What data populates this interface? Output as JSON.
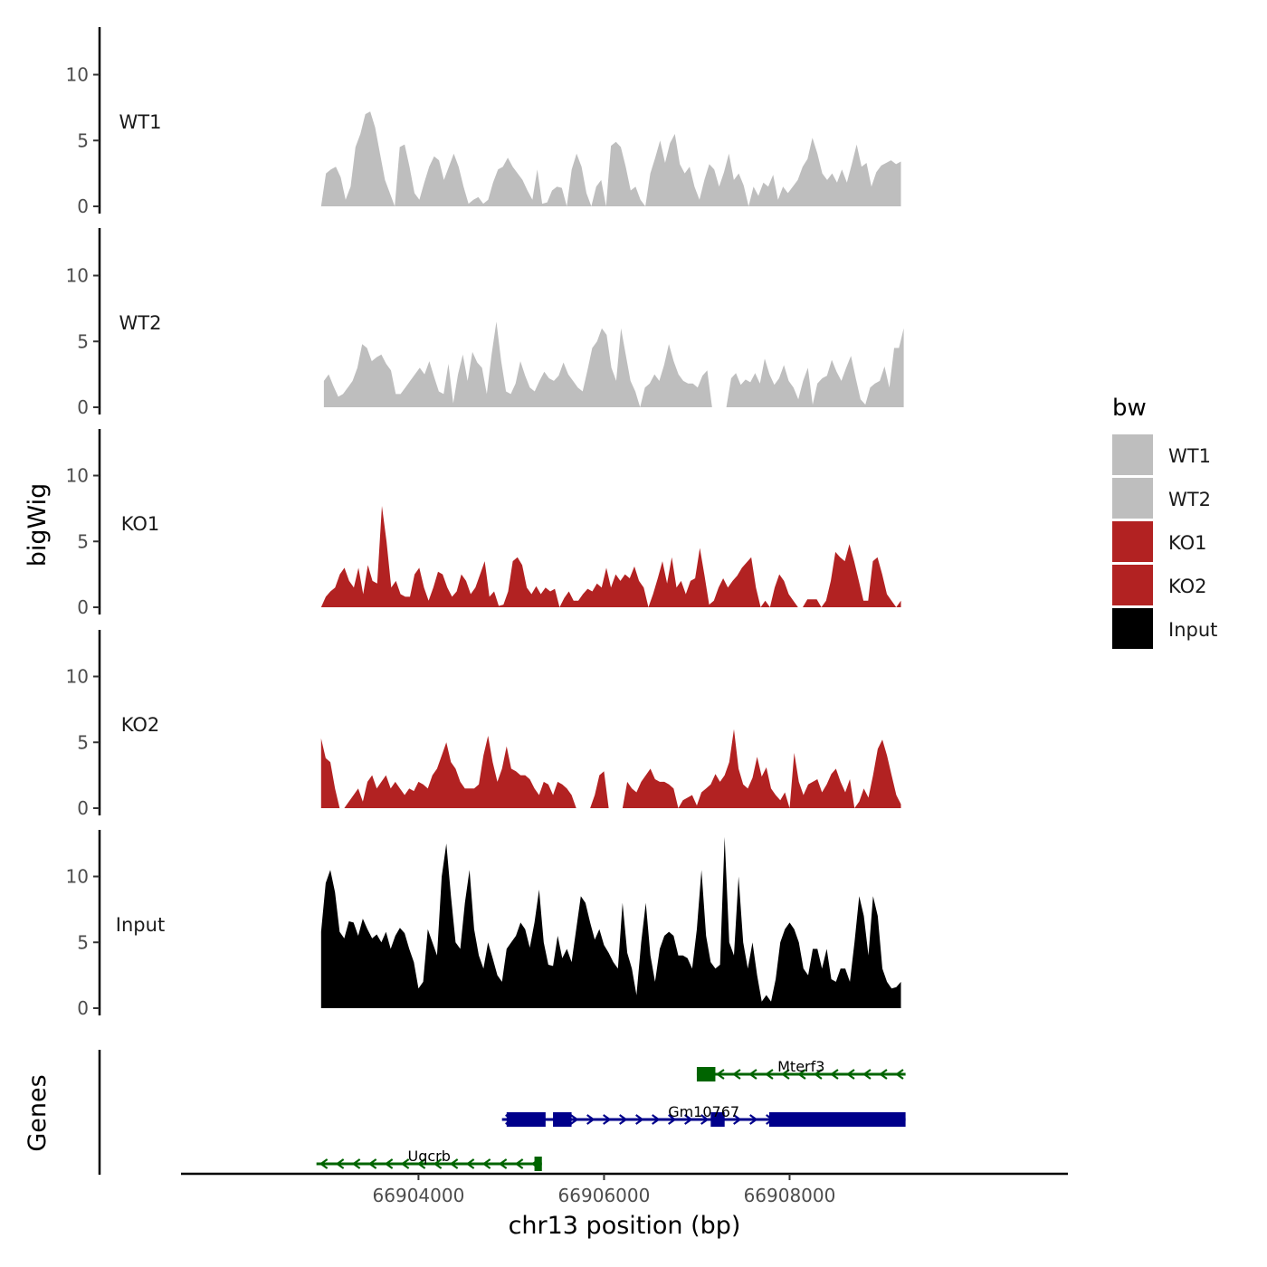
{
  "chart_data": {
    "type": "area",
    "ylabel": "bigWig",
    "xlabel": "chr13 position (bp)",
    "x_range": [
      66902600,
      66909200
    ],
    "x_axis_limits": [
      66901440,
      66911000
    ],
    "x_ticks": [
      66904000,
      66906000,
      66908000
    ],
    "x_tick_labels": [
      "66904000",
      "66906000",
      "66908000"
    ],
    "y_range": [
      0,
      14
    ],
    "y_ticks": [
      0,
      5,
      10
    ],
    "y_tick_labels": [
      "0",
      "5",
      "10"
    ],
    "legend": {
      "title": "bw",
      "entries": [
        {
          "label": "WT1",
          "color": "#bebebe"
        },
        {
          "label": "WT2",
          "color": "#bebebe"
        },
        {
          "label": "KO1",
          "color": "#b22222"
        },
        {
          "label": "KO2",
          "color": "#b22222"
        },
        {
          "label": "Input",
          "color": "#000000"
        }
      ]
    },
    "series": [
      {
        "name": "WT1",
        "color": "#bebebe",
        "start": 66902950,
        "end": 66909200,
        "values": [
          0,
          2.5,
          2.8,
          3.0,
          2.2,
          0.5,
          1.5,
          4.5,
          5.5,
          7.0,
          7.2,
          6.0,
          4.0,
          2.0,
          1.0,
          0,
          4.5,
          4.7,
          3.0,
          1.0,
          0.5,
          1.8,
          3.0,
          3.8,
          3.5,
          2.0,
          3.0,
          4.0,
          3.0,
          1.5,
          0.2,
          0.5,
          0.7,
          0.2,
          0.5,
          1.8,
          2.8,
          3.0,
          3.7,
          3.0,
          2.5,
          2.0,
          1.2,
          0.5,
          2.8,
          0.2,
          0.3,
          1.2,
          1.5,
          1.4,
          0,
          2.8,
          4.0,
          3.0,
          1.0,
          0,
          1.5,
          2.0,
          0,
          4.6,
          4.9,
          4.5,
          3.0,
          1.2,
          1.5,
          0.5,
          0,
          2.5,
          3.7,
          5.0,
          3.3,
          4.8,
          5.5,
          3.2,
          2.5,
          3.0,
          1.5,
          0.5,
          2.0,
          3.2,
          2.8,
          1.5,
          2.6,
          4.0,
          2.0,
          2.5,
          1.6,
          0,
          1.5,
          0.8,
          1.8,
          1.5,
          2.4,
          0.5,
          1.5,
          1.0,
          1.5,
          2.0,
          3.0,
          3.6,
          5.2,
          4.0,
          2.5,
          2.0,
          2.5,
          1.8,
          2.8,
          1.8,
          3.2,
          4.7,
          3.0,
          3.3,
          1.5,
          2.6,
          3.1,
          3.3,
          3.5,
          3.2,
          3.4
        ]
      },
      {
        "name": "WT2",
        "color": "#bebebe",
        "start": 66902980,
        "end": 66909230,
        "values": [
          2.0,
          2.5,
          1.6,
          0.8,
          1.0,
          1.5,
          2.0,
          3.0,
          4.8,
          4.5,
          3.5,
          3.8,
          4.0,
          3.3,
          2.8,
          1.0,
          1.0,
          1.5,
          2.0,
          2.5,
          3.0,
          2.5,
          3.5,
          2.3,
          1.2,
          1.0,
          3.3,
          0.3,
          2.5,
          4.0,
          2.0,
          4.2,
          3.4,
          3.0,
          1.0,
          4.0,
          6.5,
          3.5,
          1.2,
          1.0,
          1.8,
          3.5,
          2.4,
          1.5,
          1.2,
          2.0,
          2.7,
          2.2,
          2.0,
          2.4,
          3.4,
          2.5,
          2.0,
          1.5,
          1.2,
          2.8,
          4.5,
          5.0,
          6.0,
          5.5,
          3.0,
          2.0,
          6.0,
          4.0,
          2.0,
          1.2,
          0,
          1.5,
          1.8,
          2.5,
          2.0,
          3.2,
          4.8,
          3.5,
          2.5,
          2.0,
          1.8,
          1.8,
          1.5,
          2.4,
          2.8,
          0,
          0,
          0,
          0,
          2.2,
          2.6,
          1.7,
          2.1,
          1.9,
          2.6,
          1.8,
          3.7,
          2.5,
          1.7,
          2.2,
          3.2,
          2.0,
          1.5,
          0.6,
          2.0,
          3.0,
          0.2,
          1.8,
          2.2,
          2.4,
          3.6,
          2.7,
          2.0,
          3.0,
          3.9,
          2.2,
          0.6,
          0.2,
          1.5,
          1.8,
          2.0,
          3.1,
          1.5,
          4.5,
          4.5,
          6.0
        ]
      },
      {
        "name": "KO1",
        "color": "#b22222",
        "start": 66902950,
        "end": 66909200,
        "values": [
          0,
          0.8,
          1.2,
          1.5,
          2.5,
          3.0,
          2.0,
          1.5,
          3.0,
          1.0,
          3.2,
          2.0,
          1.8,
          7.7,
          5.0,
          1.5,
          2.0,
          1.0,
          0.8,
          0.8,
          2.5,
          3.0,
          1.5,
          0.5,
          1.5,
          2.7,
          2.5,
          1.5,
          0.8,
          1.2,
          2.5,
          2.0,
          1.0,
          1.5,
          2.5,
          3.5,
          0.8,
          1.2,
          0.1,
          0.2,
          1.2,
          3.5,
          3.8,
          3.2,
          1.5,
          1.0,
          1.6,
          1.0,
          1.5,
          1.2,
          1.4,
          0,
          0.7,
          1.2,
          0.5,
          0.5,
          1.0,
          1.4,
          1.2,
          1.8,
          1.5,
          3.0,
          1.5,
          2.5,
          2.0,
          2.5,
          2.2,
          3.1,
          2.0,
          1.5,
          0,
          1.0,
          2.2,
          3.5,
          1.8,
          3.8,
          1.5,
          2.0,
          1.0,
          2.0,
          2.2,
          4.5,
          2.4,
          0.2,
          0.5,
          1.5,
          2.2,
          1.5,
          2.0,
          2.4,
          3.0,
          3.4,
          3.8,
          1.5,
          0,
          0.5,
          0,
          1.5,
          2.5,
          2.0,
          1.0,
          0.5,
          0,
          0,
          0.6,
          0.6,
          0.6,
          0,
          0.5,
          2.0,
          4.2,
          3.8,
          3.5,
          4.8,
          3.5,
          2.0,
          0.5,
          0.5,
          3.5,
          3.8,
          2.5,
          1.0,
          0.5,
          0,
          0.5
        ]
      },
      {
        "name": "KO2",
        "color": "#b22222",
        "start": 66902950,
        "end": 66909200,
        "values": [
          5.3,
          3.8,
          3.5,
          1.5,
          0,
          0,
          0.5,
          1.0,
          1.5,
          0.5,
          2.0,
          2.5,
          1.5,
          2.0,
          2.5,
          1.5,
          2.0,
          1.5,
          1.0,
          1.5,
          1.3,
          2.0,
          1.8,
          1.5,
          2.5,
          3.0,
          4.0,
          5.0,
          3.5,
          3.0,
          2.0,
          1.5,
          1.5,
          1.5,
          1.8,
          4.0,
          5.5,
          3.5,
          2.0,
          3.0,
          4.7,
          3.0,
          2.8,
          2.5,
          2.5,
          2.2,
          1.5,
          1.0,
          2.0,
          1.8,
          1.0,
          2.0,
          1.8,
          1.5,
          1.0,
          0,
          0,
          0,
          0,
          1.0,
          2.5,
          2.8,
          0,
          0,
          0,
          0,
          2.0,
          1.5,
          1.2,
          2.0,
          2.5,
          3.0,
          2.2,
          2.0,
          2.0,
          1.8,
          1.5,
          0,
          0.6,
          0.8,
          1.0,
          0.2,
          1.2,
          1.5,
          1.8,
          2.6,
          2.0,
          2.5,
          3.5,
          6.0,
          3.0,
          1.8,
          1.5,
          2.3,
          3.9,
          2.4,
          3.1,
          1.5,
          1.0,
          0.6,
          1.2,
          0,
          4.2,
          2.0,
          1.0,
          1.8,
          2.0,
          2.2,
          1.2,
          1.8,
          2.6,
          3.0,
          2.0,
          1.2,
          2.2,
          0,
          0.5,
          1.5,
          0.8,
          2.5,
          4.5,
          5.2,
          4.0,
          2.5,
          1.0,
          0.3
        ]
      },
      {
        "name": "Input",
        "color": "#000000",
        "start": 66902950,
        "end": 66909200,
        "values": [
          5.8,
          9.5,
          10.5,
          8.8,
          5.8,
          5.3,
          6.6,
          6.5,
          5.5,
          6.8,
          6.0,
          5.3,
          5.6,
          5.0,
          5.8,
          4.5,
          5.5,
          6.1,
          5.7,
          4.5,
          3.5,
          1.5,
          2.0,
          6.0,
          5.0,
          4.0,
          10.0,
          12.5,
          8.5,
          5.0,
          4.5,
          8.0,
          10.5,
          6.0,
          4.0,
          3.0,
          5.0,
          3.8,
          2.5,
          2.0,
          4.5,
          5.0,
          5.5,
          6.5,
          6.0,
          4.6,
          6.5,
          9.0,
          5.0,
          3.3,
          3.2,
          5.5,
          3.8,
          4.5,
          3.5,
          6.0,
          8.5,
          8.0,
          6.5,
          5.2,
          6.0,
          4.8,
          4.2,
          3.5,
          3.0,
          8.0,
          4.2,
          3.0,
          1.0,
          5.0,
          8.0,
          4.0,
          2.0,
          4.5,
          5.5,
          5.8,
          5.5,
          4.0,
          4.0,
          3.8,
          3.0,
          6.0,
          10.5,
          5.5,
          3.5,
          3.0,
          3.3,
          13.0,
          5.0,
          4.0,
          10.0,
          5.0,
          3.0,
          5.0,
          2.5,
          0.5,
          1.0,
          0.5,
          2.2,
          5.0,
          6.0,
          6.5,
          6.0,
          5.0,
          3.0,
          2.5,
          4.5,
          4.5,
          3.0,
          4.5,
          2.2,
          2.0,
          3.0,
          3.0,
          2.0,
          5.0,
          8.5,
          7.0,
          4.0,
          8.5,
          7.0,
          3.0,
          2.0,
          1.5,
          1.6,
          2.0
        ]
      }
    ],
    "genes": {
      "label": "Genes",
      "items": [
        {
          "name": "Mterf3",
          "color": "#006400",
          "strand": "-",
          "start": 66907000,
          "end": 66909250,
          "exons": [
            [
              66907000,
              66907200
            ]
          ]
        },
        {
          "name": "Gm10767",
          "color": "#00008b",
          "strand": "+",
          "start": 66904900,
          "end": 66909250,
          "exons": [
            [
              66904950,
              66905370
            ],
            [
              66905450,
              66905650
            ],
            [
              66907150,
              66907300
            ],
            [
              66907780,
              66909250
            ]
          ]
        },
        {
          "name": "Uqcrb",
          "color": "#006400",
          "strand": "-",
          "start": 66902900,
          "end": 66905330,
          "exons": [
            [
              66905250,
              66905330
            ]
          ]
        }
      ]
    }
  }
}
